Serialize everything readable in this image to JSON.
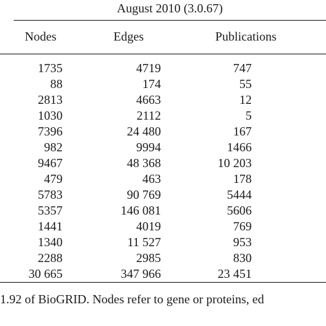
{
  "table": {
    "group_header": "August 2010 (3.0.67)",
    "columns": [
      "Nodes",
      "Edges",
      "Publications"
    ],
    "rows": [
      {
        "nodes": "1735",
        "edges": "4719",
        "publications": "747"
      },
      {
        "nodes": "88",
        "edges": "174",
        "publications": "55"
      },
      {
        "nodes": "2813",
        "edges": "4663",
        "publications": "12"
      },
      {
        "nodes": "1030",
        "edges": "2112",
        "publications": "5"
      },
      {
        "nodes": "7396",
        "edges": "24 480",
        "publications": "167"
      },
      {
        "nodes": "982",
        "edges": "9994",
        "publications": "1466"
      },
      {
        "nodes": "9467",
        "edges": "48 368",
        "publications": "10 203"
      },
      {
        "nodes": "479",
        "edges": "463",
        "publications": "178"
      },
      {
        "nodes": "5783",
        "edges": "90 769",
        "publications": "5444"
      },
      {
        "nodes": "5357",
        "edges": "146 081",
        "publications": "5606"
      },
      {
        "nodes": "1441",
        "edges": "4019",
        "publications": "769"
      },
      {
        "nodes": "1340",
        "edges": "11 527",
        "publications": "953"
      },
      {
        "nodes": "2288",
        "edges": "2985",
        "publications": "830"
      },
      {
        "nodes": "30 665",
        "edges": "347 966",
        "publications": "23 451"
      }
    ]
  },
  "caption": "1.92 of BioGRID. Nodes refer to gene or proteins, ed"
}
